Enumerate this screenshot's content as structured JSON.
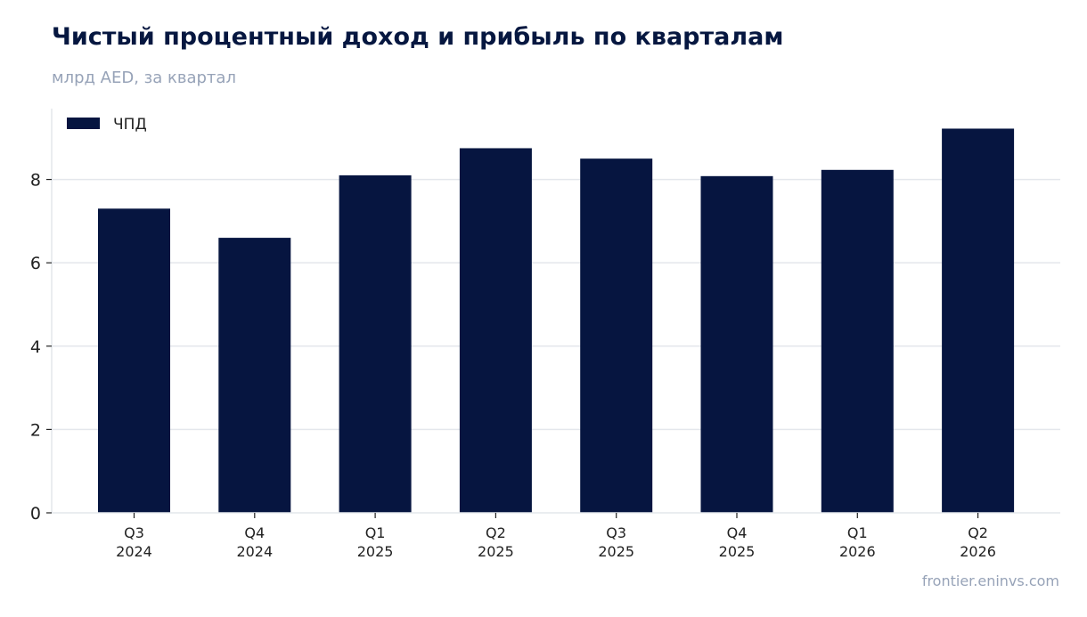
{
  "title": "Чистый процентный доход и прибыль по кварталам",
  "subtitle": "млрд AED, за квартал",
  "source": "frontier.eninvs.com",
  "colors": {
    "bar": "#061540",
    "grid": "#e4e7ec",
    "axis": "#222222",
    "muted": "#97a3b8"
  },
  "chart_data": {
    "type": "bar",
    "title": "Чистый процентный доход и прибыль по кварталам",
    "subtitle": "млрд AED, за квартал",
    "xlabel": "",
    "ylabel": "",
    "categories": [
      [
        "Q3",
        "2024"
      ],
      [
        "Q4",
        "2024"
      ],
      [
        "Q1",
        "2025"
      ],
      [
        "Q2",
        "2025"
      ],
      [
        "Q3",
        "2025"
      ],
      [
        "Q4",
        "2025"
      ],
      [
        "Q1",
        "2026"
      ],
      [
        "Q2",
        "2026"
      ]
    ],
    "series": [
      {
        "name": "ЧПД",
        "values": [
          7.3,
          6.6,
          8.1,
          8.75,
          8.5,
          8.08,
          8.23,
          9.22
        ]
      }
    ],
    "ylim": [
      0,
      9.7
    ],
    "yticks": [
      0,
      2,
      4,
      6,
      8
    ],
    "grid": true,
    "legend_position": "top-left"
  }
}
